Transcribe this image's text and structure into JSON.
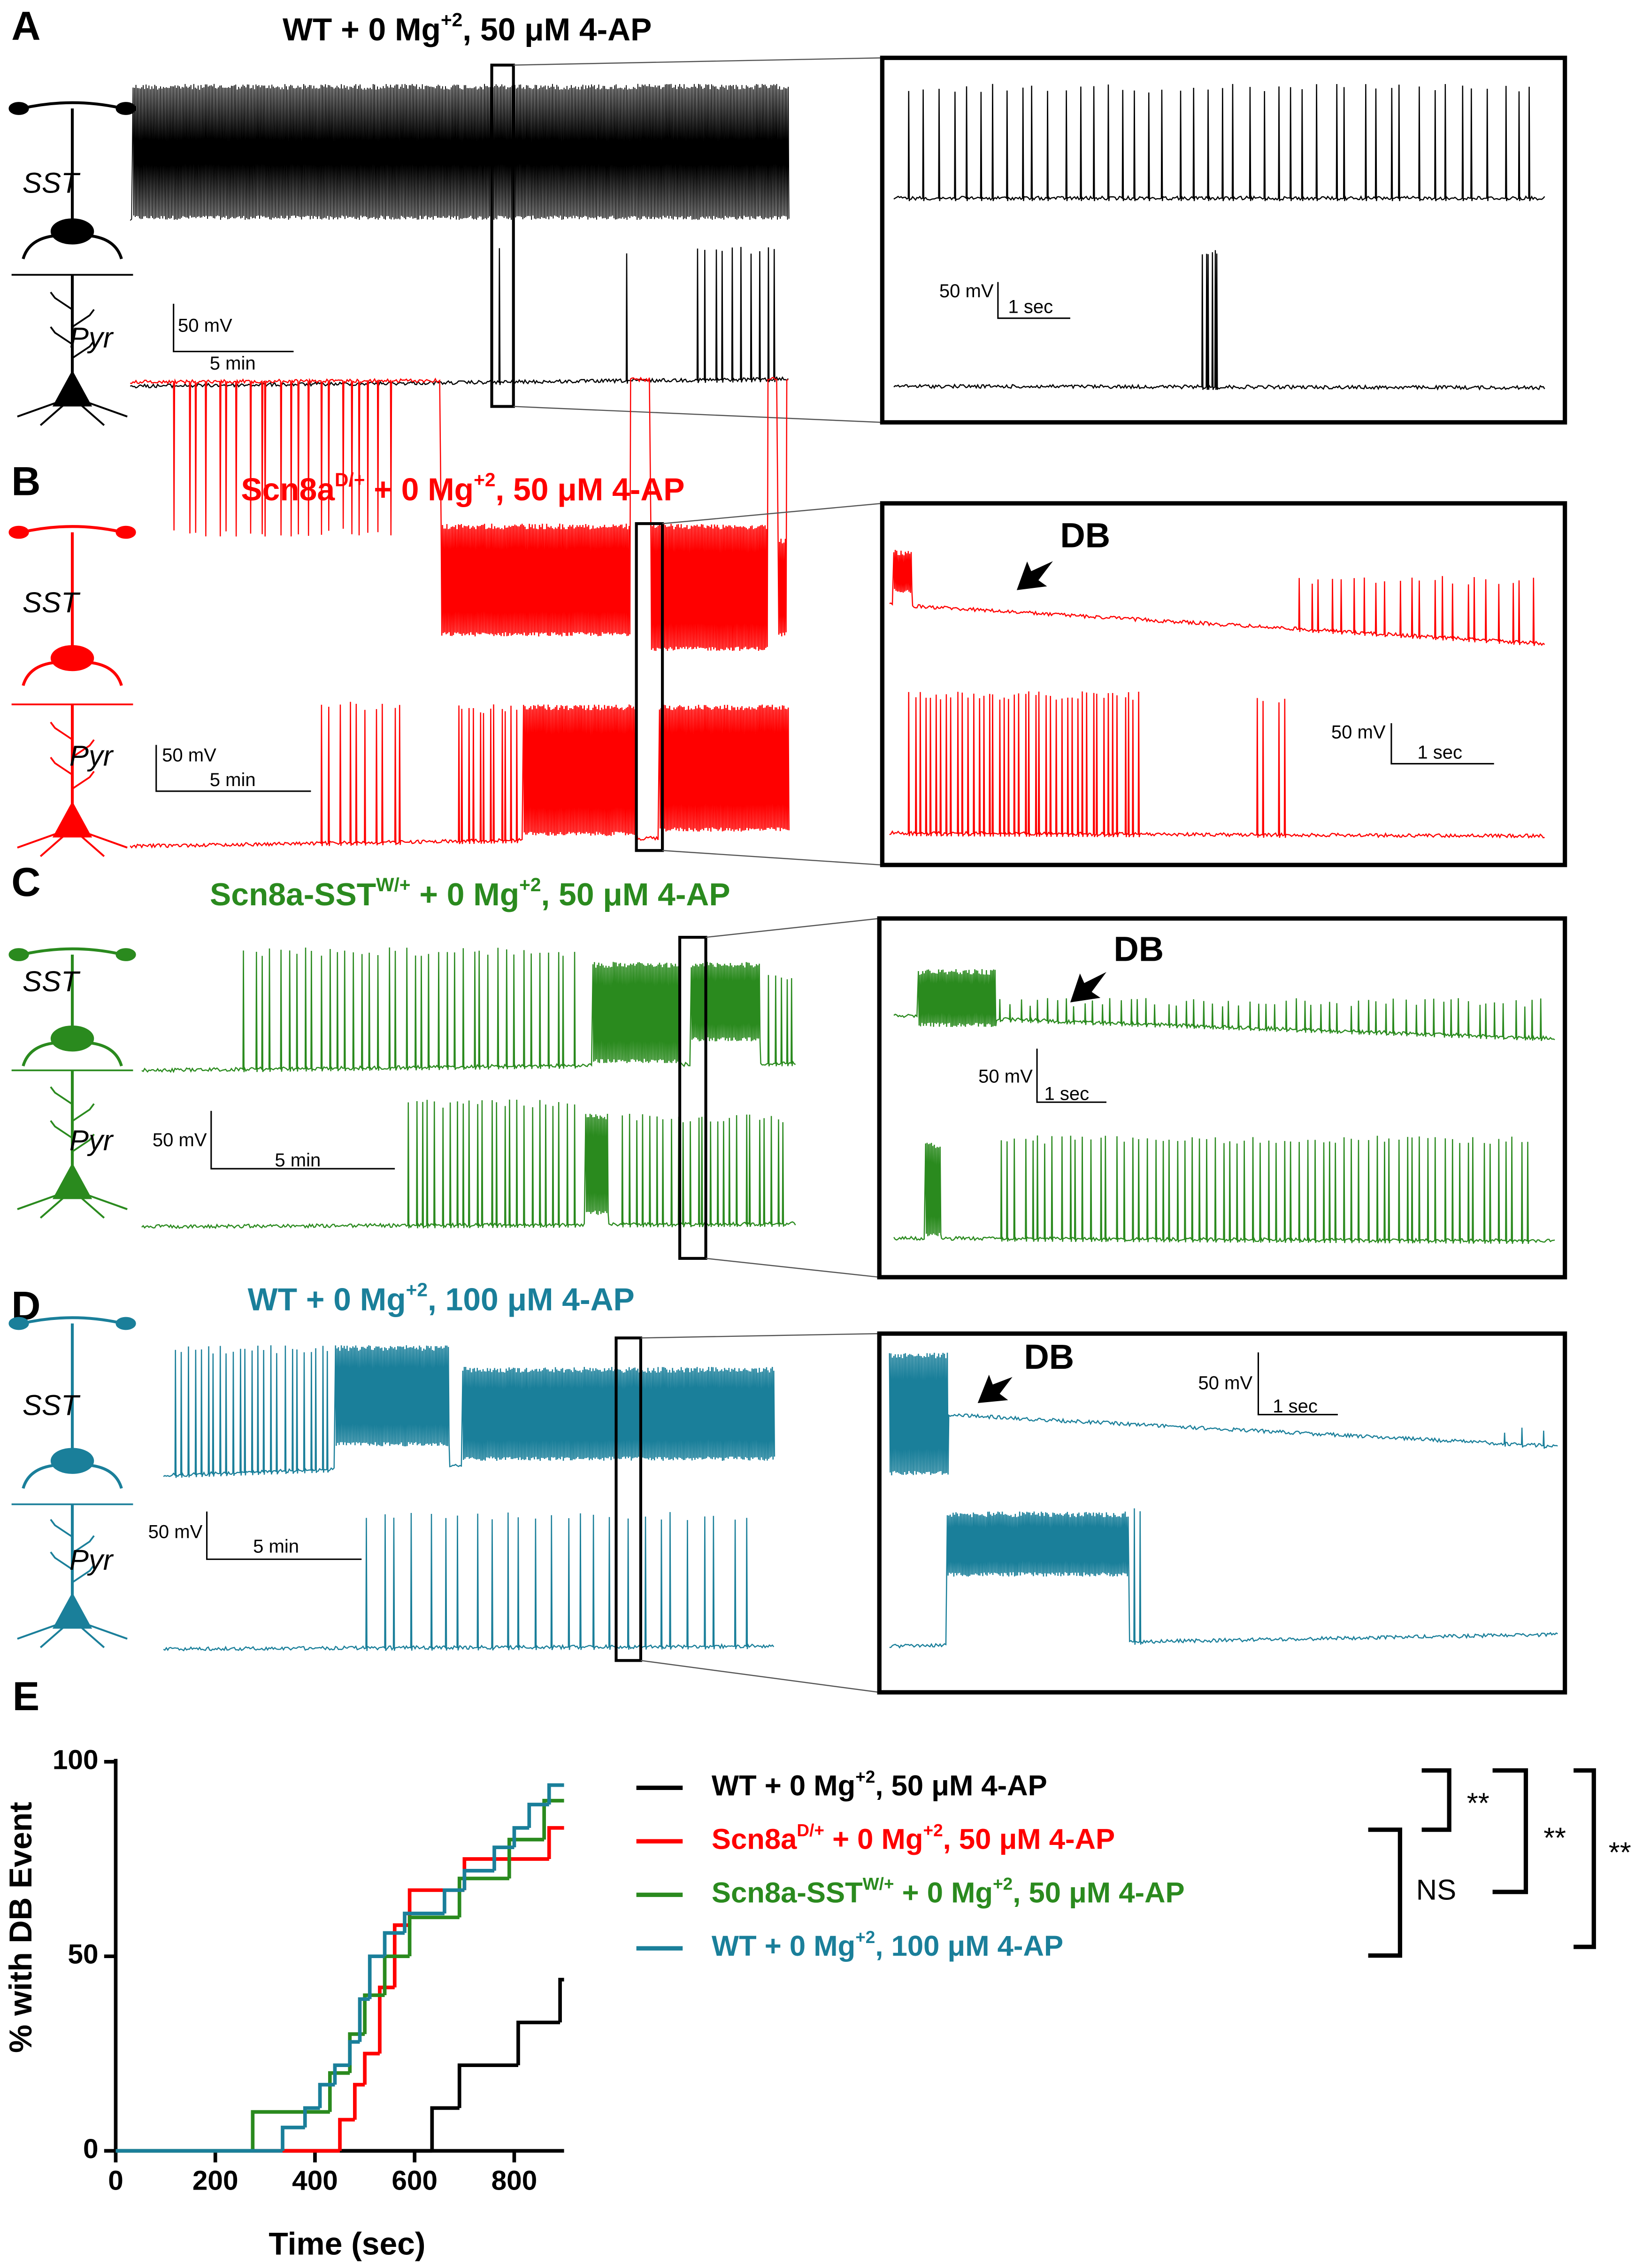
{
  "panels": [
    {
      "label": "A",
      "title": [
        "WT + 0 Mg",
        "+2",
        ", 50 μM 4-AP"
      ],
      "color": "#000000",
      "cells": [
        "SST",
        "Pyr"
      ],
      "scale_main": [
        "50 mV",
        "5 min"
      ],
      "scale_inset": [
        "50 mV",
        "1 sec"
      ]
    },
    {
      "label": "B",
      "title": [
        "Scn8a",
        "D/+",
        " + 0 Mg",
        "+2",
        ", 50 μM 4-AP"
      ],
      "color": "#ff0000",
      "cells": [
        "SST",
        "Pyr"
      ],
      "scale_main": [
        "50 mV",
        "5 min"
      ],
      "scale_inset": [
        "50 mV",
        "1 sec"
      ],
      "annotation": "DB"
    },
    {
      "label": "C",
      "title": [
        "Scn8a-SST",
        "W/+",
        " + 0 Mg",
        "+2",
        ", 50 μM 4-AP"
      ],
      "color": "#2a8a1e",
      "cells": [
        "SST",
        "Pyr"
      ],
      "scale_main": [
        "50 mV",
        "5 min"
      ],
      "scale_inset": [
        "50 mV",
        "1 sec"
      ],
      "annotation": "DB"
    },
    {
      "label": "D",
      "title": [
        "WT + 0 Mg",
        "+2",
        ", 100 μM 4-AP"
      ],
      "color": "#1a7f9a",
      "cells": [
        "SST",
        "Pyr"
      ],
      "scale_main": [
        "50 mV",
        "5 min"
      ],
      "scale_inset": [
        "50 mV",
        "1 sec"
      ],
      "annotation": "DB"
    }
  ],
  "chart_data": {
    "type": "step",
    "panel_label": "E",
    "x_label": "Time (sec)",
    "y_label": "% with DB Event",
    "xlim": [
      0,
      900
    ],
    "ylim": [
      0,
      100
    ],
    "xticks": [
      0,
      200,
      400,
      600,
      800
    ],
    "yticks": [
      0,
      50,
      100
    ],
    "series": [
      {
        "name": [
          "WT + 0 Mg",
          "+2",
          ", 50 μM 4-AP"
        ],
        "color": "#000000",
        "x": [
          0,
          635,
          690,
          808,
          892,
          900
        ],
        "values": [
          0,
          11,
          22,
          33,
          44,
          44
        ]
      },
      {
        "name": [
          "Scn8a",
          "D/+",
          " + 0 Mg",
          "+2",
          ", 50 μM 4-AP"
        ],
        "color": "#ff0000",
        "x": [
          0,
          450,
          480,
          500,
          530,
          560,
          590,
          700,
          870,
          900
        ],
        "values": [
          0,
          8,
          17,
          25,
          42,
          58,
          67,
          75,
          83,
          83
        ]
      },
      {
        "name": [
          "Scn8a-SST",
          "W/+",
          " + 0 Mg",
          "+2",
          ", 50 μM 4-AP"
        ],
        "color": "#2a8a1e",
        "x": [
          0,
          275,
          430,
          470,
          500,
          540,
          590,
          690,
          790,
          860,
          900
        ],
        "values": [
          0,
          10,
          20,
          30,
          40,
          50,
          60,
          70,
          80,
          90,
          90
        ]
      },
      {
        "name": [
          "WT + 0 Mg",
          "+2",
          ", 100 μM 4-AP"
        ],
        "color": "#1a7f9a",
        "x": [
          0,
          335,
          380,
          410,
          440,
          470,
          490,
          510,
          540,
          580,
          660,
          700,
          760,
          800,
          830,
          870,
          900
        ],
        "values": [
          0,
          6,
          11,
          17,
          22,
          28,
          39,
          50,
          56,
          61,
          67,
          72,
          78,
          83,
          89,
          94,
          94
        ]
      }
    ],
    "annotations": [
      "**",
      "NS",
      "**",
      "**"
    ]
  }
}
